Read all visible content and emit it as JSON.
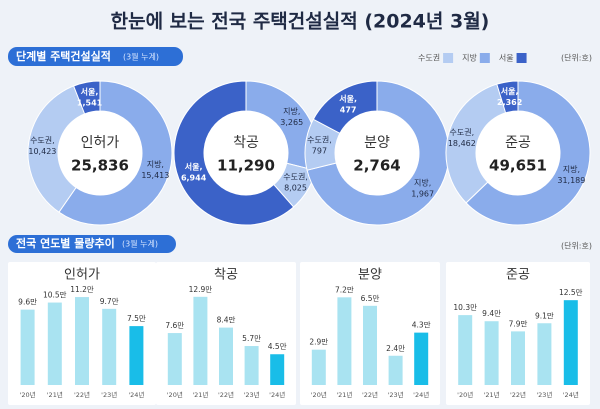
{
  "title": "한눈에 보는 전국 주택건설실적 (2024년 3월)",
  "section1": {
    "title": "단계별 주택건설실적",
    "note": "(3월 누계)",
    "unit": "(단위:호)"
  },
  "section2": {
    "title": "전국 연도별 물량추이",
    "note": "(3월 누계)",
    "unit": "(단위:호)"
  },
  "legend": {
    "names": [
      "수도권",
      "지방",
      "서울"
    ],
    "colors": [
      "#b4ccf2",
      "#8aaceb",
      "#3b62c8"
    ]
  },
  "chart_data": [
    {
      "type": "pie",
      "title": "인허가",
      "total": "25,836",
      "categories": [
        "수도권,",
        "지방,",
        "서울,"
      ],
      "values": [
        10423,
        15413,
        1541
      ],
      "value_labels": [
        "10,423",
        "15,413",
        "1,541"
      ]
    },
    {
      "type": "pie",
      "title": "착공",
      "total": "11,290",
      "categories": [
        "수도권,",
        "지방,",
        "서울,"
      ],
      "values": [
        8025,
        3265,
        6944
      ],
      "value_labels": [
        "8,025",
        "3,265",
        "6,944"
      ]
    },
    {
      "type": "pie",
      "title": "분양",
      "total": "2,764",
      "categories": [
        "수도권,",
        "지방,",
        "서울,"
      ],
      "values": [
        797,
        1967,
        477
      ],
      "value_labels": [
        "797",
        "1,967",
        "477"
      ]
    },
    {
      "type": "pie",
      "title": "준공",
      "total": "49,651",
      "categories": [
        "수도권,",
        "지방,",
        "서울,"
      ],
      "values": [
        18462,
        31189,
        2362
      ],
      "value_labels": [
        "18,462",
        "31,189",
        "2,362"
      ]
    },
    {
      "type": "bar",
      "title": "인허가",
      "categories": [
        "'20년",
        "'21년",
        "'22년",
        "'23년",
        "'24년"
      ],
      "values": [
        9.6,
        10.5,
        11.2,
        9.7,
        7.5
      ],
      "value_labels": [
        "9.6만",
        "10.5만",
        "11.2만",
        "9.7만",
        "7.5만"
      ],
      "colors": [
        "#a9e3f1",
        "#a9e3f1",
        "#a9e3f1",
        "#a9e3f1",
        "#19bde8"
      ],
      "ylim": [
        0,
        12.1
      ]
    },
    {
      "type": "bar",
      "title": "착공",
      "categories": [
        "'20년",
        "'21년",
        "'22년",
        "'23년",
        "'24년"
      ],
      "values": [
        7.6,
        12.9,
        8.4,
        5.7,
        4.5
      ],
      "value_labels": [
        "7.6만",
        "12.9만",
        "8.4만",
        "5.7만",
        "4.5만"
      ],
      "colors": [
        "#a9e3f1",
        "#a9e3f1",
        "#a9e3f1",
        "#a9e3f1",
        "#19bde8"
      ],
      "ylim": [
        0,
        13.9
      ]
    },
    {
      "type": "bar",
      "title": "분양",
      "categories": [
        "'20년",
        "'21년",
        "'22년",
        "'23년",
        "'24년"
      ],
      "values": [
        2.9,
        7.2,
        6.5,
        2.4,
        4.3
      ],
      "value_labels": [
        "2.9만",
        "7.2만",
        "6.5만",
        "2.4만",
        "4.3만"
      ],
      "colors": [
        "#a9e3f1",
        "#a9e3f1",
        "#a9e3f1",
        "#a9e3f1",
        "#19bde8"
      ],
      "ylim": [
        0,
        7.8
      ]
    },
    {
      "type": "bar",
      "title": "준공",
      "categories": [
        "'20년",
        "'21년",
        "'22년",
        "'23년",
        "'24년"
      ],
      "values": [
        10.3,
        9.4,
        7.9,
        9.1,
        12.5
      ],
      "value_labels": [
        "10.3만",
        "9.4만",
        "7.9만",
        "9.1만",
        "12.5만"
      ],
      "colors": [
        "#a9e3f1",
        "#a9e3f1",
        "#a9e3f1",
        "#a9e3f1",
        "#19bde8"
      ],
      "ylim": [
        0,
        14
      ]
    }
  ]
}
